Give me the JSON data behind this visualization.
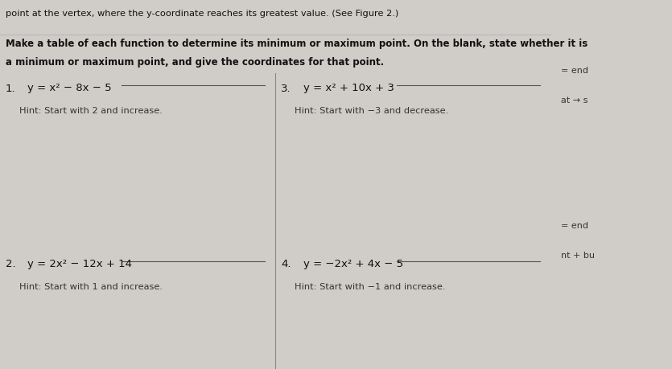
{
  "background_color": "#d0ccc8",
  "paper_color": "#e8e4e0",
  "title_line": "point at the vertex, where the y-coordinate reaches its greatest value. (See Figure 2.)",
  "instruction_line1": "Make a table of each function to determine its minimum or maximum point. On the blank, state whether it is",
  "instruction_line2": "a minimum or maximum point, and give the coordinates for that point.",
  "problems": [
    {
      "number": "1.",
      "equation": "y = x² − 8x − 5",
      "hint": "Hint: Start with 2 and increase.",
      "col": 0,
      "row": 0
    },
    {
      "number": "3.",
      "equation": "y = x² + 10x + 3",
      "hint": "Hint: Start with −3 and decrease.",
      "col": 1,
      "row": 0
    },
    {
      "number": "2.",
      "equation": "y = 2x² − 12x + 14",
      "hint": "Hint: Start with 1 and increase.",
      "col": 0,
      "row": 1
    },
    {
      "number": "4.",
      "equation": "y = −2x² + 4x − 5",
      "hint": "Hint: Start with −1 and increase.",
      "col": 1,
      "row": 1
    }
  ],
  "right_strip_color": "#c0bbb6",
  "right_strip_texts_top": [
    "= end",
    "at → s"
  ],
  "right_strip_texts_bottom": [
    "= end",
    "nt + bu"
  ],
  "divider_color": "#888888",
  "text_color": "#111111",
  "hint_color": "#333333",
  "line_color": "#555555"
}
